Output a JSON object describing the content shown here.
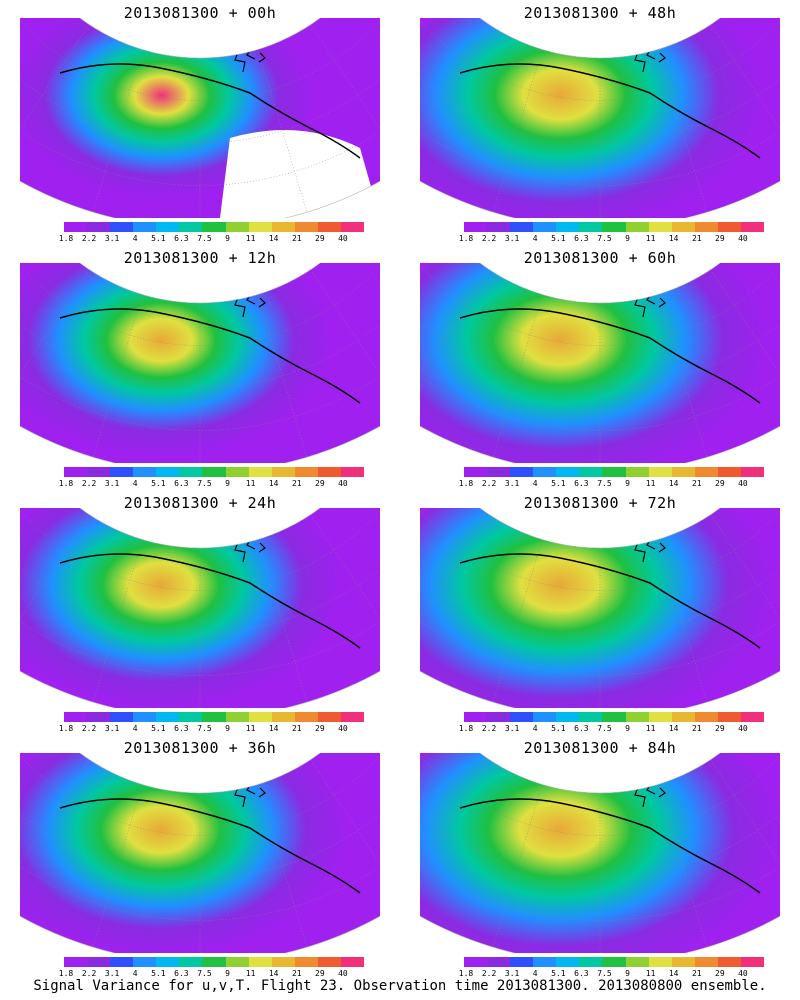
{
  "panels": [
    {
      "id": "p00",
      "title": "2013081300  + 00h",
      "peak": "magenta",
      "level": 0.55
    },
    {
      "id": "p48",
      "title": "2013081300  + 48h",
      "peak": "orange",
      "level": 0.8
    },
    {
      "id": "p12",
      "title": "2013081300  + 12h",
      "peak": "orange",
      "level": 0.65
    },
    {
      "id": "p60",
      "title": "2013081300  + 60h",
      "peak": "orange",
      "level": 0.82
    },
    {
      "id": "p24",
      "title": "2013081300  + 24h",
      "peak": "orange",
      "level": 0.7
    },
    {
      "id": "p72",
      "title": "2013081300  + 72h",
      "peak": "orange",
      "level": 0.85
    },
    {
      "id": "p36",
      "title": "2013081300  + 36h",
      "peak": "orange",
      "level": 0.72
    },
    {
      "id": "p84",
      "title": "2013081300  + 84h",
      "peak": "orange",
      "level": 0.88
    }
  ],
  "colorbar": {
    "colors": [
      "#a020f0",
      "#8a2be2",
      "#3050ff",
      "#2090ff",
      "#00b8f0",
      "#00c8a0",
      "#20c040",
      "#90d030",
      "#e0e040",
      "#e8b830",
      "#f08a30",
      "#f05a30",
      "#f0307a"
    ],
    "ticks": [
      "1.8",
      "2.2",
      "3.1",
      "4",
      "5.1",
      "6.3",
      "7.5",
      "9",
      "11",
      "14",
      "21",
      "29",
      "40"
    ]
  },
  "caption": "Signal Variance for u,v,T. Flight 23. Observation time 2013081300. 2013080800 ensemble."
}
